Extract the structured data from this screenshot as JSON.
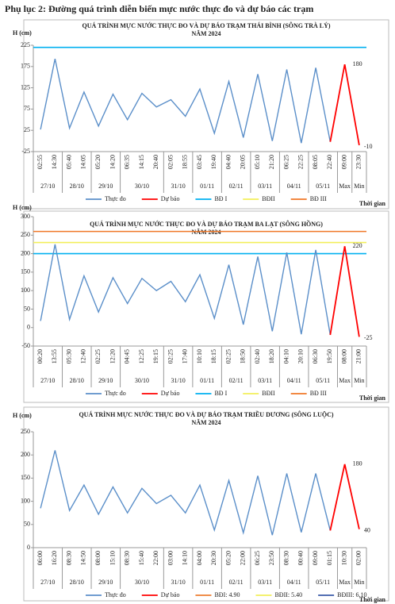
{
  "header": {
    "title": "Phụ lục 2: Đường quá trình diễn biến mực nước thực đo và dự báo các trạm"
  },
  "chart_data": [
    {
      "type": "line",
      "title": "QUÁ TRÌNH MỰC NƯỚC THỰC ĐO VÀ DỰ BÁO TRẠM THÁI BÌNH (SÔNG TRÀ LÝ)",
      "subtitle": "NĂM 2024",
      "y_label": "H (cm)",
      "x_label": "Thời gian",
      "categories": [
        "02:55",
        "14:30",
        "05:40",
        "14:05",
        "05:20",
        "14:20",
        "06:35",
        "14:15",
        "20:40",
        "02:05",
        "18:55",
        "03:45",
        "19:40",
        "04:40",
        "20:05",
        "05:10",
        "21:20",
        "06:25",
        "22:25",
        "08:05",
        "22:40",
        "09:00",
        "23:30"
      ],
      "date_labels": [
        "27/10",
        null,
        "28/10",
        null,
        "29/10",
        null,
        "30/10",
        null,
        null,
        "31/10",
        null,
        "01/11",
        null,
        "02/11",
        null,
        "03/11",
        null,
        "04/11",
        null,
        "05/11",
        null,
        "Max",
        "Min"
      ],
      "series": [
        {
          "name": "Thực đo",
          "color": "#5b8fc9",
          "values": [
            27,
            193,
            30,
            115,
            35,
            110,
            50,
            112,
            80,
            97,
            58,
            122,
            18,
            140,
            8,
            157,
            0,
            168,
            -5,
            172,
            -2,
            null,
            null
          ]
        },
        {
          "name": "Dự báo",
          "color": "#ff0000",
          "values": [
            null,
            null,
            null,
            null,
            null,
            null,
            null,
            null,
            null,
            null,
            null,
            null,
            null,
            null,
            null,
            null,
            null,
            null,
            null,
            null,
            -2,
            180,
            -10
          ]
        }
      ],
      "levels": [
        {
          "name": "BĐ I",
          "color": "#00b0f0",
          "value": 220
        },
        {
          "name": "BĐII",
          "color": "#f2ef5a"
        },
        {
          "name": "BĐ III",
          "color": "#f07828"
        }
      ],
      "ylim": [
        -25,
        225
      ],
      "yticks": [
        -25,
        25,
        75,
        125,
        175,
        225
      ]
    },
    {
      "type": "line",
      "title": "QUÁ TRÌNH MỰC NƯỚC THỰC ĐO VÀ DỰ BÁO TRẠM BA LẠT (SÔNG HỒNG)",
      "subtitle": "NĂM 2024",
      "y_label": "H (cm)",
      "x_label": "Thời gian",
      "categories": [
        "00:20",
        "13:55",
        "05:30",
        "12:40",
        "02:25",
        "12:20",
        "04:45",
        "12:25",
        "19:15",
        "02:25",
        "17:40",
        "10:10",
        "18:15",
        "02:25",
        "18:50",
        "02:40",
        "18:20",
        "04:10",
        "20:10",
        "06:30",
        "19:50",
        "08:00",
        "21:00"
      ],
      "date_labels": [
        "27/10",
        null,
        "28/10",
        null,
        "29/10",
        null,
        "30/10",
        null,
        null,
        "31/10",
        null,
        "01/11",
        null,
        "02/11",
        null,
        "03/11",
        null,
        "04/11",
        null,
        "05/11",
        null,
        "Max",
        "Min"
      ],
      "series": [
        {
          "name": "Thực đo",
          "color": "#5b8fc9",
          "values": [
            18,
            225,
            22,
            140,
            42,
            135,
            65,
            133,
            100,
            125,
            70,
            143,
            25,
            170,
            8,
            192,
            -10,
            203,
            -18,
            210,
            -20,
            null,
            null
          ]
        },
        {
          "name": "Dự báo",
          "color": "#ff0000",
          "values": [
            null,
            null,
            null,
            null,
            null,
            null,
            null,
            null,
            null,
            null,
            null,
            null,
            null,
            null,
            null,
            null,
            null,
            null,
            null,
            null,
            -20,
            220,
            -25
          ]
        }
      ],
      "levels": [
        {
          "name": "BĐ I",
          "color": "#00b0f0",
          "value": 200
        },
        {
          "name": "BĐII",
          "color": "#f2ef5a",
          "value": 230
        },
        {
          "name": "BĐ III",
          "color": "#f07828",
          "value": 260
        }
      ],
      "ylim": [
        -50,
        300
      ],
      "yticks": [
        -50,
        0,
        50,
        100,
        150,
        200,
        250,
        300
      ]
    },
    {
      "type": "line",
      "title": "QUÁ TRÌNH MỰC NƯỚC THỰC ĐO VÀ DỰ BÁO TRẠM TRIỀU DƯƠNG (SÔNG LUỘC)",
      "subtitle": "NĂM 2024",
      "y_label": "H (cm)",
      "x_label": "Thời gian",
      "categories": [
        "06:00",
        "16:20",
        "08:30",
        "14:50",
        "08:00",
        "15:10",
        "08:30",
        "15:40",
        "22:00",
        "03:00",
        "14:10",
        "04:00",
        "20:30",
        "05:20",
        "22:00",
        "06:25",
        "23:50",
        "08:30",
        "00:40",
        "09:00",
        "01:15",
        "10:30",
        "02:00"
      ],
      "date_labels": [
        "27/10",
        null,
        "28/10",
        null,
        "29/10",
        null,
        "30/10",
        null,
        null,
        "31/10",
        null,
        "01/11",
        null,
        "02/11",
        null,
        "03/11",
        null,
        "04/11",
        null,
        "05/11",
        null,
        "Max",
        "Min"
      ],
      "series": [
        {
          "name": "Thực đo",
          "color": "#5b8fc9",
          "values": [
            85,
            210,
            80,
            135,
            72,
            131,
            75,
            128,
            95,
            113,
            75,
            135,
            38,
            145,
            32,
            155,
            27,
            160,
            33,
            160,
            37,
            null,
            null
          ]
        },
        {
          "name": "Dự báo",
          "color": "#ff0000",
          "values": [
            null,
            null,
            null,
            null,
            null,
            null,
            null,
            null,
            null,
            null,
            null,
            null,
            null,
            null,
            null,
            null,
            null,
            null,
            null,
            null,
            37,
            180,
            40
          ]
        }
      ],
      "levels": [
        {
          "name": "BĐI: 4.90",
          "color": "#ed7d31"
        },
        {
          "name": "BĐII: 5.40",
          "color": "#f2ef5a"
        },
        {
          "name": "BĐIII: 6.10",
          "color": "#3a5aa8"
        }
      ],
      "ylim": [
        0,
        250
      ],
      "yticks": [
        0,
        50,
        100,
        150,
        200,
        250
      ]
    }
  ]
}
